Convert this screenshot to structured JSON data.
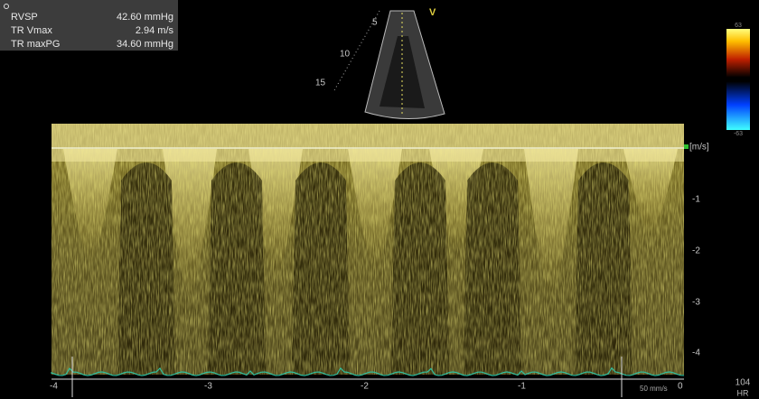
{
  "measurements": [
    {
      "label": "RVSP",
      "value": "42.60 mmHg"
    },
    {
      "label": "TR Vmax",
      "value": "2.94 m/s"
    },
    {
      "label": "TR maxPG",
      "value": "34.60 mmHg"
    }
  ],
  "sector": {
    "depth_marks": [
      "5",
      "10",
      "15"
    ],
    "marker": "V"
  },
  "color_bar": {
    "max": "63",
    "min": "-63"
  },
  "velocity_axis": {
    "unit": "[m/s]",
    "ticks": [
      "-1",
      "-2",
      "-3",
      "-4"
    ]
  },
  "time_axis": {
    "ticks": [
      "-4",
      "-3",
      "-2",
      "-1",
      "0"
    ]
  },
  "sweep_speed": "50 mm/s",
  "heart_rate": {
    "value": "104",
    "label": "HR"
  }
}
